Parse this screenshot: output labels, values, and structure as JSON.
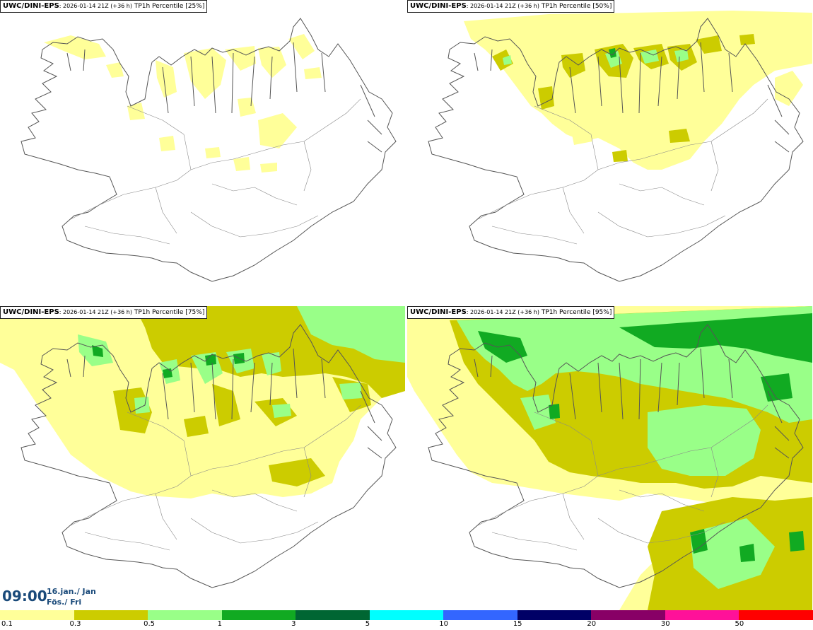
{
  "panels": [
    {
      "model": "UWC/DINI-EPS",
      "run": ": 2026-01-14 21Z (+36 h)",
      "field": " TP1h Percentile [25%]"
    },
    {
      "model": "UWC/DINI-EPS",
      "run": ": 2026-01-14 21Z (+36 h)",
      "field": " TP1h Percentile [50%]"
    },
    {
      "model": "UWC/DINI-EPS",
      "run": ": 2026-01-14 21Z (+36 h)",
      "field": " TP1h Percentile [75%]"
    },
    {
      "model": "UWC/DINI-EPS",
      "run": ": 2026-01-14 21Z (+36 h)",
      "field": " TP1h Percentile [95%]"
    }
  ],
  "valid_time": {
    "hour": "09:00",
    "date": "16.jan./ Jan",
    "day": "Fös./ Fri"
  },
  "legend": {
    "colors": [
      "#ffff99",
      "#cccc00",
      "#99ff88",
      "#11aa22",
      "#006633",
      "#00ffff",
      "#3366ff",
      "#000066",
      "#880066",
      "#ff1199",
      "#ff0000"
    ],
    "labels": [
      "0.1",
      "0.3",
      "0.5",
      "1",
      "3",
      "5",
      "10",
      "15",
      "20",
      "30",
      "50"
    ]
  }
}
